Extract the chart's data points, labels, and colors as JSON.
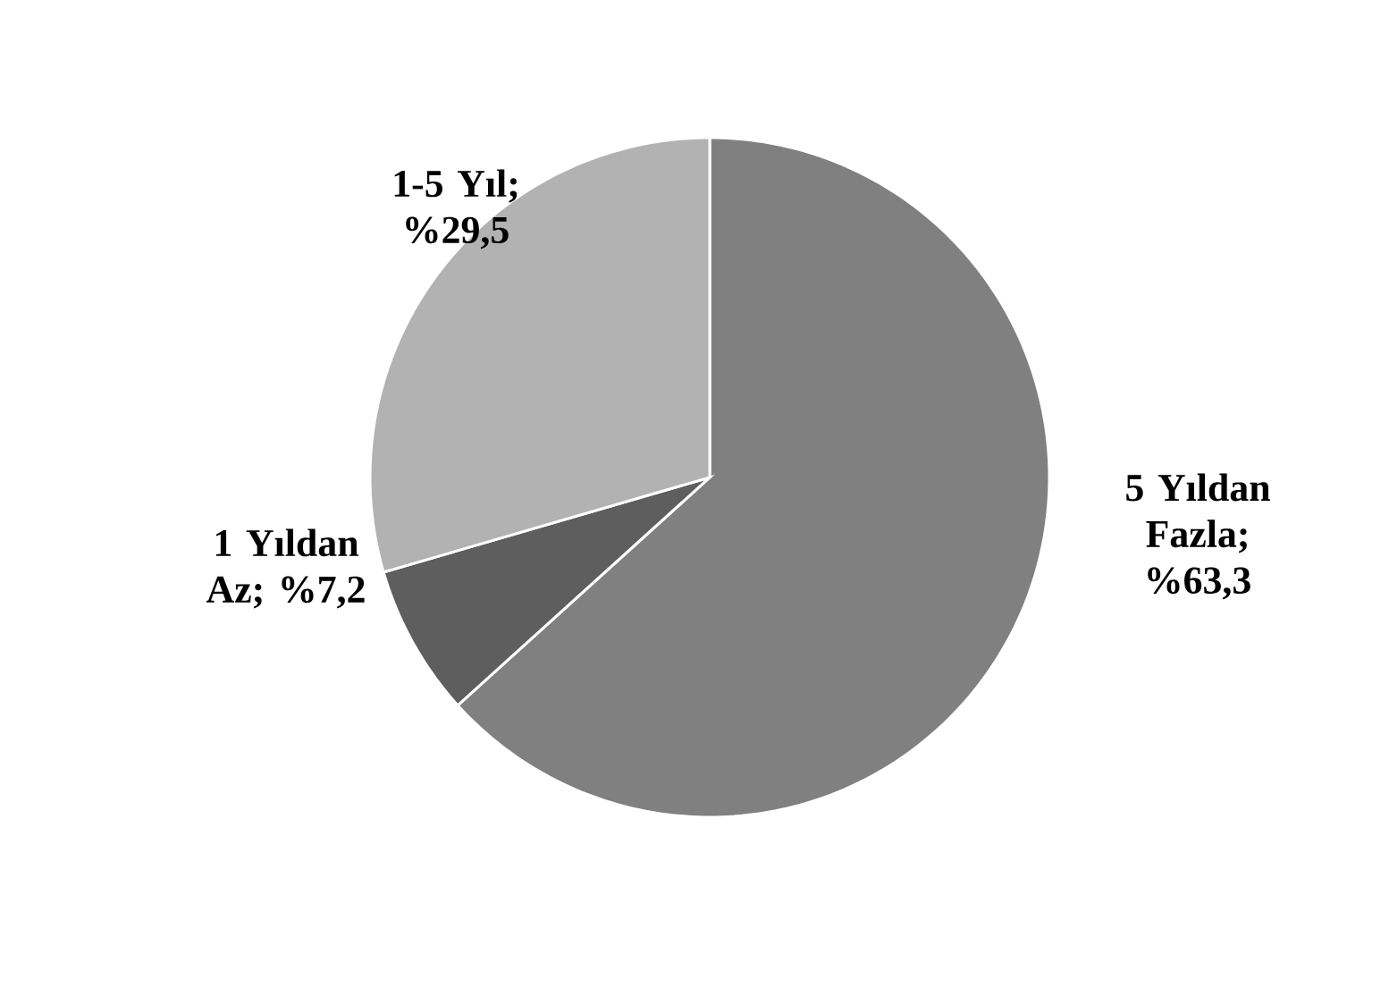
{
  "chart_data": {
    "type": "pie",
    "categories": [
      "5 Yıldan Fazla",
      "1 Yıldan Az",
      "1-5 Yıl"
    ],
    "values": [
      63.3,
      7.2,
      29.5
    ],
    "value_labels": [
      "; %63,3",
      "; %7,2",
      "; %29,5"
    ],
    "colors": [
      "#808080",
      "#5e5e5e",
      "#b2b2b2"
    ]
  }
}
